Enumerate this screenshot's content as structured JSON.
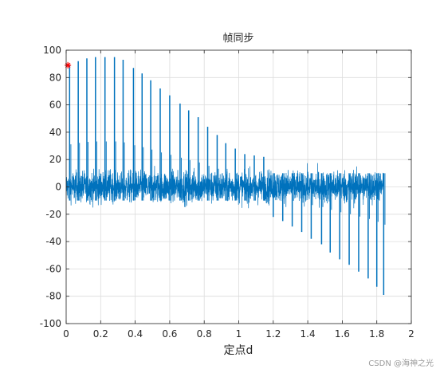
{
  "chart_data": {
    "type": "line",
    "title": "帧同步",
    "xlabel": "定点d",
    "ylabel": "",
    "xlim": [
      0,
      2
    ],
    "ylim": [
      -100,
      100
    ],
    "xticks": [
      0,
      0.2,
      0.4,
      0.6,
      0.8,
      1,
      1.2,
      1.4,
      1.6,
      1.8,
      2
    ],
    "xtick_labels": [
      "0",
      "0.2",
      "0.4",
      "0.6",
      "0.8",
      "1",
      "1.2",
      "1.4",
      "1.6",
      "1.8",
      "2"
    ],
    "yticks": [
      -100,
      -80,
      -60,
      -40,
      -20,
      0,
      20,
      40,
      60,
      80,
      100
    ],
    "ytick_labels": [
      "-100",
      "-80",
      "-60",
      "-40",
      "-20",
      "0",
      "20",
      "40",
      "60",
      "80",
      "100"
    ],
    "grid": true,
    "colors": {
      "series": "#0072BD",
      "marker": "#FF0000",
      "grid": "#dcdcdc",
      "axis": "#262626"
    },
    "series": [
      {
        "style": "noise-band",
        "x_start": 0,
        "x_end": 1.84,
        "band_typical": [
          -15,
          15
        ],
        "band_extreme": [
          -25,
          25
        ]
      }
    ],
    "peaks": {
      "x": [
        0.02,
        0.07,
        0.12,
        0.17,
        0.225,
        0.28,
        0.33,
        0.39,
        0.44,
        0.49,
        0.545,
        0.6,
        0.66,
        0.71,
        0.765,
        0.82,
        0.875,
        0.925,
        0.98,
        1.035,
        1.09,
        1.145,
        1.2,
        1.255,
        1.31,
        1.365,
        1.42,
        1.48,
        1.53,
        1.585,
        1.64,
        1.695,
        1.75,
        1.8,
        1.84
      ],
      "y": [
        89,
        92,
        94,
        95,
        95,
        95,
        93,
        87,
        83,
        78,
        72,
        67,
        61,
        56,
        51,
        44,
        38,
        32,
        28,
        24,
        23,
        22,
        -22,
        -25,
        -29,
        -33,
        -38,
        -42,
        -48,
        -53,
        -57,
        -62,
        -67,
        -73,
        -79
      ]
    },
    "marker": {
      "x": 0.01,
      "y": 89,
      "symbol": "*"
    }
  },
  "watermark": "CSDN @海神之光"
}
